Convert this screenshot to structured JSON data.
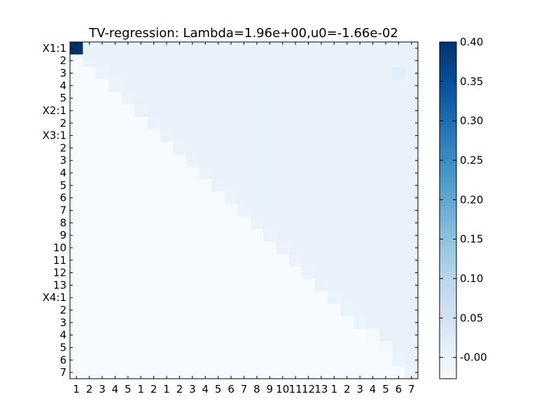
{
  "chart_data": {
    "type": "heatmap",
    "title": "TV-regression: Lambda=1.96e+00,u0=-1.66e-02",
    "xlabel": "",
    "ylabel": "",
    "row_labels": [
      "X1:1",
      "2",
      "3",
      "4",
      "5",
      "X2:1",
      "2",
      "X3:1",
      "2",
      "3",
      "4",
      "5",
      "6",
      "7",
      "8",
      "9",
      "10",
      "11",
      "12",
      "13",
      "X4:1",
      "2",
      "3",
      "4",
      "5",
      "6",
      "7"
    ],
    "col_labels": [
      "1",
      "2",
      "3",
      "4",
      "5",
      "1",
      "2",
      "1",
      "2",
      "3",
      "4",
      "5",
      "6",
      "7",
      "8",
      "9",
      "10",
      "11",
      "12",
      "13",
      "1",
      "2",
      "3",
      "4",
      "5",
      "6",
      "7"
    ],
    "colorbar": {
      "colormap": "Blues",
      "vmin": -0.027,
      "vmax": 0.4,
      "ticks": [
        "-0.00",
        "0.05",
        "0.10",
        "0.15",
        "0.20",
        "0.25",
        "0.30",
        "0.35",
        "0.40"
      ],
      "tick_values": [
        0,
        0.05,
        0.1,
        0.15,
        0.2,
        0.25,
        0.3,
        0.35,
        0.4
      ]
    },
    "matrix_description": {
      "diagonal_0": 0.4,
      "diagonal_default": 0.0,
      "upper_default": 0.003,
      "lower_default": -0.027,
      "special_cells": [
        {
          "row": 2,
          "col": 25,
          "value": 0.02
        },
        {
          "row": 23,
          "col": 23,
          "value": -0.02
        },
        {
          "row": 24,
          "col": 24,
          "value": -0.02
        }
      ]
    },
    "grid": false,
    "legend": "colorbar-right"
  }
}
